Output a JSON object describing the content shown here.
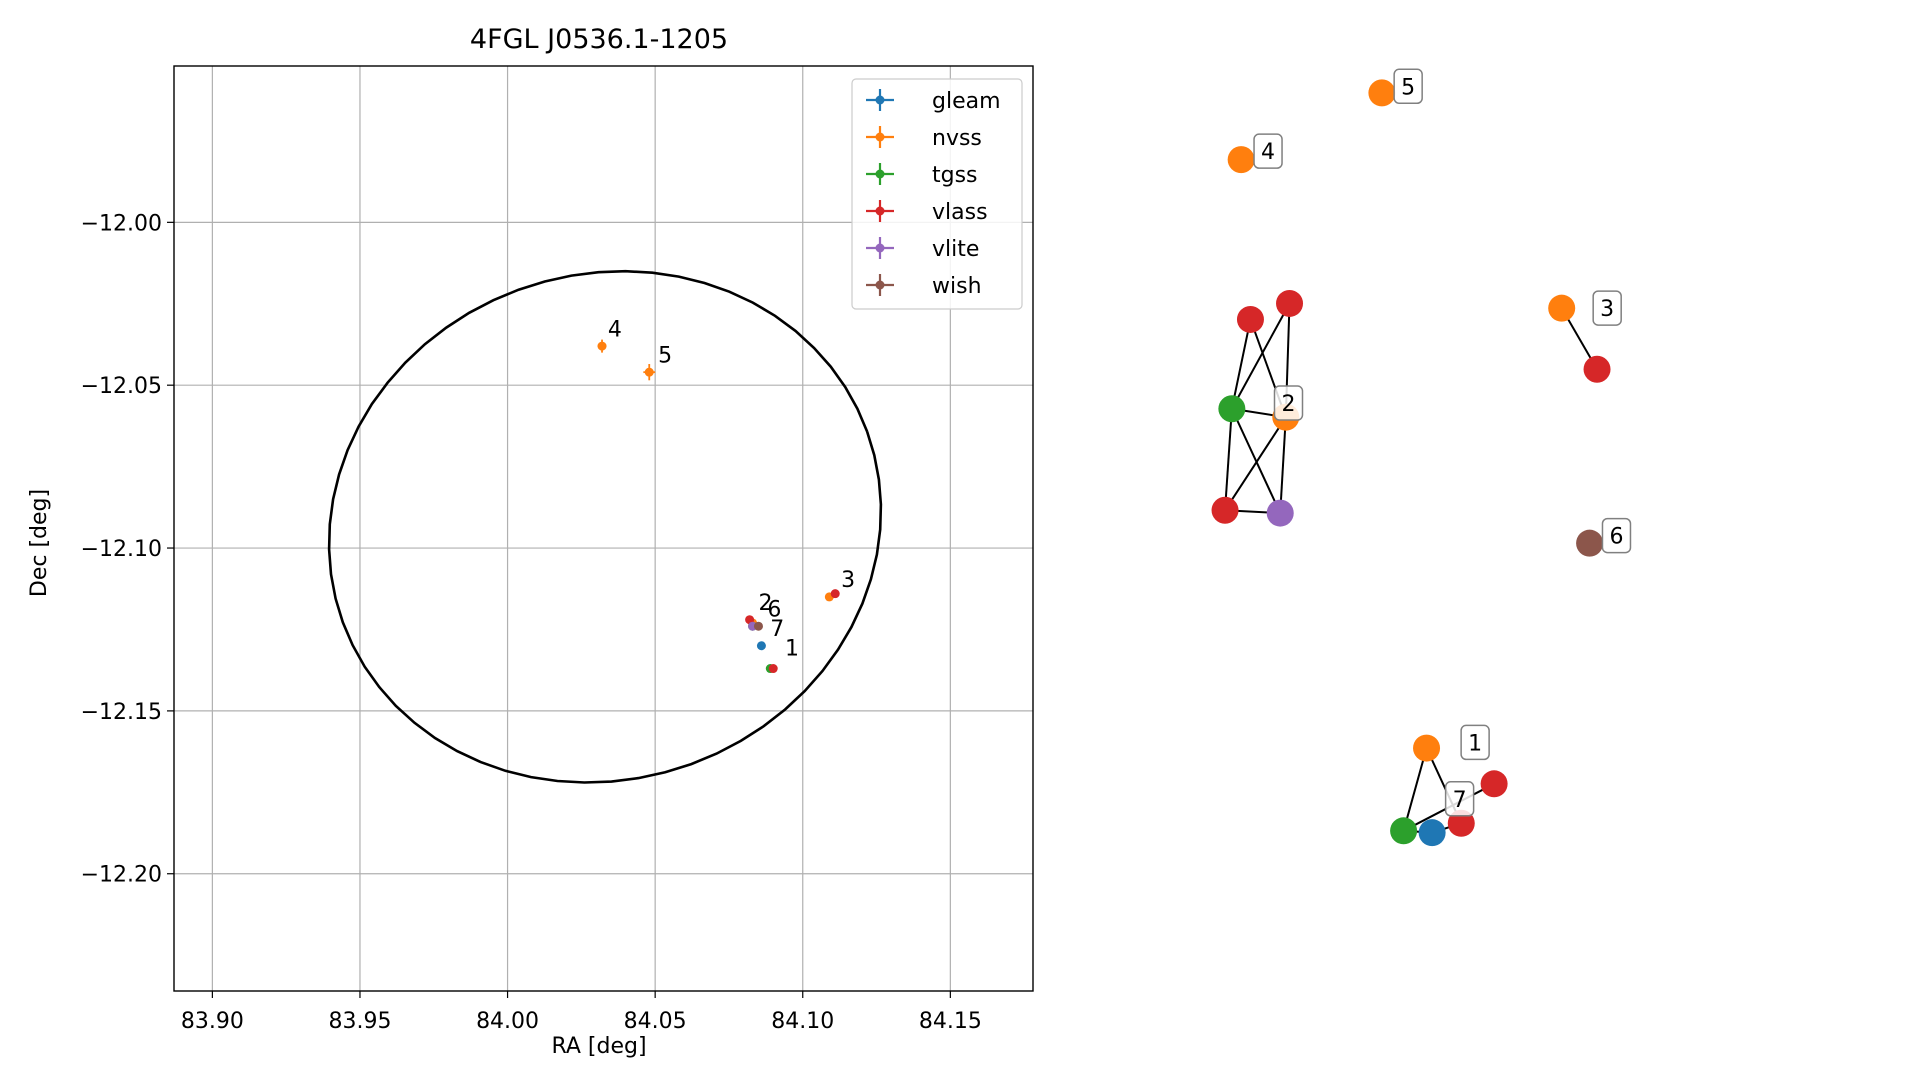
{
  "chart_data": [
    {
      "type": "scatter",
      "title": "4FGL J0536.1-1205",
      "xlabel": "RA [deg]",
      "ylabel": "Dec [deg]",
      "xlim": [
        83.887,
        84.178
      ],
      "ylim": [
        -12.236,
        -11.952
      ],
      "xticks": [
        83.9,
        83.95,
        84.0,
        84.05,
        84.1,
        84.15
      ],
      "xtick_labels": [
        "83.90",
        "83.95",
        "84.00",
        "84.05",
        "84.10",
        "84.15"
      ],
      "yticks": [
        -12.0,
        -12.05,
        -12.1,
        -12.15,
        -12.2
      ],
      "ytick_labels": [
        "−12.00",
        "−12.05",
        "−12.10",
        "−12.15",
        "−12.20"
      ],
      "grid": true,
      "legend_position": "top-right",
      "series": [
        {
          "name": "gleam",
          "color": "#1f77b4",
          "points": [
            {
              "ra": 84.086,
              "dec": -12.13,
              "err_ra": 0.0006,
              "err_dec": 0.0008
            }
          ]
        },
        {
          "name": "nvss",
          "color": "#ff7f0e",
          "points": [
            {
              "ra": 84.032,
              "dec": -12.038,
              "err_ra": 0.0015,
              "err_dec": 0.002
            },
            {
              "ra": 84.048,
              "dec": -12.046,
              "err_ra": 0.002,
              "err_dec": 0.0025
            },
            {
              "ra": 84.109,
              "dec": -12.115,
              "err_ra": 0.0008,
              "err_dec": 0.001
            },
            {
              "ra": 84.083,
              "dec": -12.123,
              "err_ra": 0.0005,
              "err_dec": 0.0006
            }
          ]
        },
        {
          "name": "tgss",
          "color": "#2ca02c",
          "points": [
            {
              "ra": 84.083,
              "dec": -12.124,
              "err_ra": 0.0006,
              "err_dec": 0.0006
            },
            {
              "ra": 84.089,
              "dec": -12.137,
              "err_ra": 0.0008,
              "err_dec": 0.0008
            }
          ]
        },
        {
          "name": "vlass",
          "color": "#d62728",
          "points": [
            {
              "ra": 84.082,
              "dec": -12.122,
              "err_ra": 0.0003,
              "err_dec": 0.0003
            },
            {
              "ra": 84.111,
              "dec": -12.114,
              "err_ra": 0.0003,
              "err_dec": 0.0003
            },
            {
              "ra": 84.09,
              "dec": -12.137,
              "err_ra": 0.0003,
              "err_dec": 0.0003
            }
          ]
        },
        {
          "name": "vlite",
          "color": "#9467bd",
          "points": [
            {
              "ra": 84.083,
              "dec": -12.124,
              "err_ra": 0.0005,
              "err_dec": 0.0005
            }
          ]
        },
        {
          "name": "wish",
          "color": "#8c564b",
          "points": [
            {
              "ra": 84.085,
              "dec": -12.124,
              "err_ra": 0.0006,
              "err_dec": 0.0006
            }
          ]
        }
      ],
      "annotations": [
        {
          "text": "1",
          "ra": 84.094,
          "dec": -12.133
        },
        {
          "text": "2",
          "ra": 84.085,
          "dec": -12.119
        },
        {
          "text": "3",
          "ra": 84.113,
          "dec": -12.112
        },
        {
          "text": "4",
          "ra": 84.034,
          "dec": -12.035
        },
        {
          "text": "5",
          "ra": 84.051,
          "dec": -12.043
        },
        {
          "text": "6",
          "ra": 84.088,
          "dec": -12.121
        },
        {
          "text": "7",
          "ra": 84.089,
          "dec": -12.127
        }
      ],
      "ellipse": {
        "center_ra": 84.033,
        "center_dec": -12.0935,
        "semi_ra": 0.0945,
        "semi_dec": 0.0775,
        "angle_deg": -20
      },
      "legend": [
        "gleam",
        "nvss",
        "tgss",
        "vlass",
        "vlite",
        "wish"
      ]
    },
    {
      "type": "network",
      "node_colors": {
        "nvss": "#ff7f0e",
        "vlass": "#d62728",
        "tgss": "#2ca02c",
        "vlite": "#9467bd",
        "gleam": "#1f77b4",
        "wish": "#8c564b"
      },
      "nodes": [
        {
          "id": "n5",
          "catalog": "nvss",
          "x": 0.245,
          "y": 0.035
        },
        {
          "id": "n4",
          "catalog": "nvss",
          "x": 0.018,
          "y": 0.106
        },
        {
          "id": "n3a",
          "catalog": "nvss",
          "x": 0.535,
          "y": 0.264
        },
        {
          "id": "n3b",
          "catalog": "vlass",
          "x": 0.592,
          "y": 0.329
        },
        {
          "id": "n2a",
          "catalog": "vlass",
          "x": 0.033,
          "y": 0.276
        },
        {
          "id": "n2b",
          "catalog": "vlass",
          "x": 0.096,
          "y": 0.259
        },
        {
          "id": "n2c",
          "catalog": "tgss",
          "x": 0.003,
          "y": 0.371
        },
        {
          "id": "n2d",
          "catalog": "nvss",
          "x": 0.09,
          "y": 0.38
        },
        {
          "id": "n2e",
          "catalog": "vlass",
          "x": -0.008,
          "y": 0.479
        },
        {
          "id": "n2f",
          "catalog": "vlite",
          "x": 0.081,
          "y": 0.482
        },
        {
          "id": "n6",
          "catalog": "wish",
          "x": 0.58,
          "y": 0.514
        },
        {
          "id": "n1a",
          "catalog": "nvss",
          "x": 0.317,
          "y": 0.732
        },
        {
          "id": "n1b",
          "catalog": "vlass",
          "x": 0.426,
          "y": 0.77
        },
        {
          "id": "n1c",
          "catalog": "vlass",
          "x": 0.373,
          "y": 0.812
        },
        {
          "id": "n1d",
          "catalog": "tgss",
          "x": 0.28,
          "y": 0.82
        },
        {
          "id": "n7",
          "catalog": "gleam",
          "x": 0.326,
          "y": 0.822
        }
      ],
      "edges": [
        [
          "n3a",
          "n3b"
        ],
        [
          "n2a",
          "n2c"
        ],
        [
          "n2a",
          "n2d"
        ],
        [
          "n2b",
          "n2c"
        ],
        [
          "n2b",
          "n2d"
        ],
        [
          "n2c",
          "n2d"
        ],
        [
          "n2c",
          "n2e"
        ],
        [
          "n2c",
          "n2f"
        ],
        [
          "n2d",
          "n2e"
        ],
        [
          "n2d",
          "n2f"
        ],
        [
          "n2e",
          "n2f"
        ],
        [
          "n1a",
          "n1d"
        ],
        [
          "n1a",
          "n1c"
        ],
        [
          "n1d",
          "n1b"
        ],
        [
          "n1d",
          "n7"
        ],
        [
          "n7",
          "n1c"
        ]
      ],
      "group_labels": [
        {
          "text": "5",
          "x": 0.268,
          "y": 0.012
        },
        {
          "text": "4",
          "x": 0.042,
          "y": 0.081
        },
        {
          "text": "3",
          "x": 0.589,
          "y": 0.248
        },
        {
          "text": "2",
          "x": 0.075,
          "y": 0.349
        },
        {
          "text": "6",
          "x": 0.604,
          "y": 0.49
        },
        {
          "text": "1",
          "x": 0.376,
          "y": 0.71
        },
        {
          "text": "7",
          "x": 0.351,
          "y": 0.77
        }
      ]
    }
  ]
}
